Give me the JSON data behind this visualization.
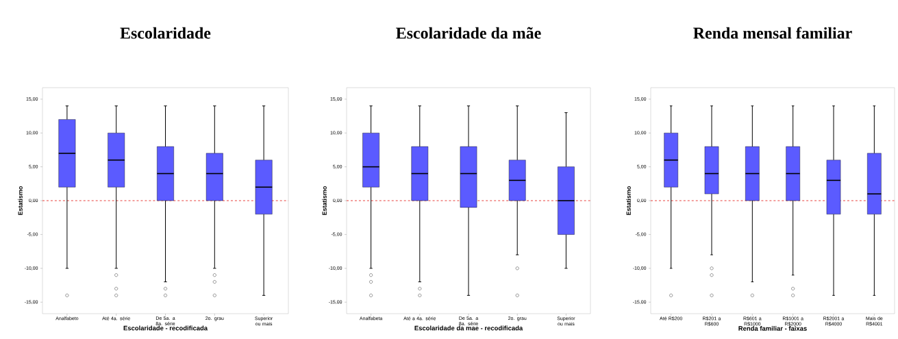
{
  "chart_data": [
    {
      "type": "box",
      "title": "Escolaridade",
      "xlabel": "Escolaridade - recodificada",
      "ylabel": "Estatismo",
      "categories": [
        "Analfabeto",
        "Até 4a. série",
        "De 5a. a 8a. série",
        "2o. grau",
        "Superior ou mais"
      ],
      "series": [
        {
          "color": "#5b5bff",
          "boxes": [
            {
              "low": -10,
              "q1": 2,
              "median": 7,
              "q3": 12,
              "high": 14,
              "outliers": [
                -14
              ]
            },
            {
              "low": -10,
              "q1": 2,
              "median": 6,
              "q3": 10,
              "high": 14,
              "outliers": [
                -11,
                -13,
                -14
              ]
            },
            {
              "low": -12,
              "q1": 0,
              "median": 4,
              "q3": 8,
              "high": 14,
              "outliers": [
                -13,
                -14
              ]
            },
            {
              "low": -10,
              "q1": 0,
              "median": 4,
              "q3": 7,
              "high": 14,
              "outliers": [
                -11,
                -12,
                -14
              ]
            },
            {
              "low": -14,
              "q1": -2,
              "median": 2,
              "q3": 6,
              "high": 14
            }
          ]
        }
      ],
      "ylim": [
        -16.7,
        16.7
      ],
      "yticks": [
        {
          "value": -15,
          "label": "-15,00"
        },
        {
          "value": -10,
          "label": "-10,00"
        },
        {
          "value": -5,
          "label": "-5,00"
        },
        {
          "value": 0,
          "label": "0,00"
        },
        {
          "value": 5,
          "label": "5,00"
        },
        {
          "value": 10,
          "label": "10,00"
        },
        {
          "value": 15,
          "label": "15,00"
        }
      ],
      "ref_lines": [
        {
          "axis": "y",
          "value": 0,
          "color": "#e8413c",
          "line_style": "dashed"
        }
      ]
    },
    {
      "type": "box",
      "title": "Escolaridade da mãe",
      "xlabel": "Escolaridade da mae - recodificada",
      "ylabel": "Estatismo",
      "categories": [
        "Analfabeta",
        "Até a 4a. série",
        "De 5a. a 8a. série",
        "2o. grau",
        "Superior ou mais"
      ],
      "series": [
        {
          "color": "#5b5bff",
          "boxes": [
            {
              "low": -10,
              "q1": 2,
              "median": 5,
              "q3": 10,
              "high": 14,
              "outliers": [
                -11,
                -12,
                -14
              ]
            },
            {
              "low": -12,
              "q1": 0,
              "median": 4,
              "q3": 8,
              "high": 14,
              "outliers": [
                -13,
                -14
              ]
            },
            {
              "low": -14,
              "q1": -1,
              "median": 4,
              "q3": 8,
              "high": 14
            },
            {
              "low": -8,
              "q1": 0,
              "median": 3,
              "q3": 6,
              "high": 14,
              "outliers": [
                -10,
                -14
              ]
            },
            {
              "low": -10,
              "q1": -5,
              "median": 0,
              "q3": 5,
              "high": 13
            }
          ]
        }
      ],
      "ylim": [
        -16.7,
        16.7
      ],
      "yticks": [
        {
          "value": -15,
          "label": "-15,00"
        },
        {
          "value": -10,
          "label": "-10,00"
        },
        {
          "value": -5,
          "label": "-5,00"
        },
        {
          "value": 0,
          "label": "0,00"
        },
        {
          "value": 5,
          "label": "5,00"
        },
        {
          "value": 10,
          "label": "10,00"
        },
        {
          "value": 15,
          "label": "15,00"
        }
      ],
      "ref_lines": [
        {
          "axis": "y",
          "value": 0,
          "color": "#e8413c",
          "line_style": "dashed"
        }
      ]
    },
    {
      "type": "box",
      "title": "Renda mensal familiar",
      "xlabel": "Renda familiar - faixas",
      "ylabel": "Estatismo",
      "categories": [
        "Até R$200",
        "R$201 a R$600",
        "R$601 a R$1000",
        "R$1001 a R$2000",
        "R$2001 a R$4000",
        "Mais de R$4001"
      ],
      "series": [
        {
          "color": "#5b5bff",
          "boxes": [
            {
              "low": -10,
              "q1": 2,
              "median": 6,
              "q3": 10,
              "high": 14,
              "outliers": [
                -14
              ]
            },
            {
              "low": -8,
              "q1": 1,
              "median": 4,
              "q3": 8,
              "high": 14,
              "outliers": [
                -10,
                -11,
                -14
              ]
            },
            {
              "low": -12,
              "q1": 0,
              "median": 4,
              "q3": 8,
              "high": 14,
              "outliers": [
                -14
              ]
            },
            {
              "low": -11,
              "q1": 0,
              "median": 4,
              "q3": 8,
              "high": 14,
              "outliers": [
                -13,
                -14
              ]
            },
            {
              "low": -14,
              "q1": -2,
              "median": 3,
              "q3": 6,
              "high": 14
            },
            {
              "low": -14,
              "q1": -2,
              "median": 1,
              "q3": 7,
              "high": 14
            }
          ]
        }
      ],
      "ylim": [
        -16.7,
        16.7
      ],
      "yticks": [
        {
          "value": -15,
          "label": "-15,00"
        },
        {
          "value": -10,
          "label": "-10,00"
        },
        {
          "value": -5,
          "label": "-5,00"
        },
        {
          "value": 0,
          "label": "0,00"
        },
        {
          "value": 5,
          "label": "5,00"
        },
        {
          "value": 10,
          "label": "10,00"
        },
        {
          "value": 15,
          "label": "15,00"
        }
      ],
      "ref_lines": [
        {
          "axis": "y",
          "value": 0,
          "color": "#e8413c",
          "line_style": "dashed"
        }
      ]
    }
  ]
}
